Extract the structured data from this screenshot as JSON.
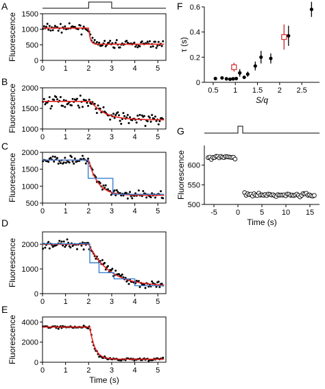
{
  "colors": {
    "fit": "#e8231f",
    "step_fit": "#3a7fd0",
    "marker": "#000000",
    "highlight": "#d43a3a"
  },
  "chart_data": [
    {
      "panel": "A",
      "type": "scatter",
      "xlabel": "",
      "ylabel": "Fluorescence",
      "xlim": [
        0,
        5.35
      ],
      "ylim": [
        0,
        1500
      ],
      "xticks": [
        0,
        1,
        2,
        3,
        4,
        5
      ],
      "yticks": [
        0,
        500,
        1000,
        1500
      ],
      "stimulus": {
        "on": 2.0,
        "off": 3.0
      },
      "series": [
        {
          "kind": "points",
          "pre": 1040,
          "post": 520,
          "t_step": 2.0,
          "tau": 0.08,
          "noise": 90
        },
        {
          "kind": "fit",
          "pre": 1040,
          "post": 520,
          "t_step": 2.0,
          "tau": 0.07
        }
      ]
    },
    {
      "panel": "B",
      "type": "scatter",
      "xlabel": "",
      "ylabel": "Fluorescence",
      "xlim": [
        0,
        5.35
      ],
      "ylim": [
        1000,
        2000
      ],
      "xticks": [
        0,
        1,
        2,
        3,
        4,
        5
      ],
      "yticks": [
        1000,
        1500,
        2000
      ],
      "series": [
        {
          "kind": "points",
          "pre": 1670,
          "post": 1220,
          "t_step": 2.1,
          "tau": 0.6,
          "noise": 110
        },
        {
          "kind": "fit",
          "pre": 1670,
          "post": 1220,
          "t_step": 2.1,
          "tau": 0.6
        }
      ]
    },
    {
      "panel": "C",
      "type": "scatter",
      "xlabel": "",
      "ylabel": "Fluorescence",
      "xlim": [
        0,
        5.35
      ],
      "ylim": [
        500,
        2000
      ],
      "xticks": [
        0,
        1,
        2,
        3,
        4,
        5
      ],
      "yticks": [
        500,
        1000,
        1500,
        2000
      ],
      "series": [
        {
          "kind": "points",
          "pre": 1770,
          "post": 730,
          "t_step": 2.0,
          "tau": 0.4,
          "noise": 90
        },
        {
          "kind": "fit",
          "pre": 1770,
          "post": 730,
          "t_step": 2.0,
          "tau": 0.4
        },
        {
          "kind": "steps",
          "levels": [
            [
              0,
              1770
            ],
            [
              1.98,
              1230
            ],
            [
              3.05,
              760
            ]
          ]
        }
      ]
    },
    {
      "panel": "D",
      "type": "scatter",
      "xlabel": "",
      "ylabel": "Fluorescence",
      "xlim": [
        0,
        5.35
      ],
      "ylim": [
        0,
        2500
      ],
      "xticks": [
        0,
        1,
        2,
        3,
        4,
        5
      ],
      "yticks": [
        0,
        1000,
        2000
      ],
      "series": [
        {
          "kind": "points",
          "pre": 2000,
          "post": 300,
          "t_step": 2.0,
          "tau": 0.9,
          "noise": 130
        },
        {
          "kind": "fit",
          "pre": 2000,
          "post": 300,
          "t_step": 2.0,
          "tau": 0.9
        },
        {
          "kind": "steps",
          "levels": [
            [
              0,
              2020
            ],
            [
              2.05,
              1250
            ],
            [
              2.45,
              850
            ],
            [
              3.1,
              600
            ],
            [
              4.0,
              320
            ]
          ]
        }
      ]
    },
    {
      "panel": "E",
      "type": "scatter",
      "xlabel": "Time (s)",
      "ylabel": "Fluorescence",
      "xlim": [
        0,
        5.35
      ],
      "ylim": [
        0,
        4500
      ],
      "xticks": [
        0,
        1,
        2,
        3,
        4,
        5
      ],
      "yticks": [
        0,
        2000,
        4000
      ],
      "series": [
        {
          "kind": "points",
          "pre": 3500,
          "post": 300,
          "t_step": 2.05,
          "tau": 0.2,
          "noise": 110
        },
        {
          "kind": "fit",
          "pre": 3500,
          "post": 300,
          "t_step": 2.05,
          "tau": 0.22
        }
      ]
    },
    {
      "panel": "F",
      "type": "scatter",
      "xlabel": "S/q",
      "ylabel": "τ (s)",
      "xlim": [
        0.3,
        2.9
      ],
      "ylim": [
        0,
        0.6
      ],
      "xticks": [
        0.5,
        1.0,
        1.5,
        2.0,
        2.5
      ],
      "yticks": [
        0.0,
        0.2,
        0.4,
        0.6
      ],
      "series": [
        {
          "name": "",
          "style": "filled",
          "x": [
            0.55,
            0.7,
            0.8,
            0.88,
            0.95,
            1.02,
            1.1,
            1.2,
            1.28,
            1.45,
            1.58,
            1.8,
            2.2,
            2.72
          ],
          "y": [
            0.03,
            0.035,
            0.028,
            0.025,
            0.028,
            0.03,
            0.075,
            0.04,
            0.065,
            0.13,
            0.2,
            0.19,
            0.37,
            0.58
          ],
          "err": [
            0.005,
            0.006,
            0.005,
            0.005,
            0.006,
            0.008,
            0.03,
            0.01,
            0.02,
            0.035,
            0.05,
            0.04,
            0.08,
            0.06
          ]
        },
        {
          "name": "",
          "style": "open-red",
          "x": [
            0.97,
            2.1
          ],
          "y": [
            0.12,
            0.36
          ],
          "err": [
            0.035,
            0.1
          ]
        }
      ]
    },
    {
      "panel": "G",
      "type": "scatter",
      "xlabel": "Time (s)",
      "ylabel": "Fluorescence",
      "xlim": [
        -7,
        17
      ],
      "ylim": [
        500,
        650
      ],
      "xticks": [
        -5,
        0,
        5,
        10,
        15
      ],
      "yticks": [
        500,
        550,
        600
      ],
      "stimulus": {
        "on": 0,
        "off": 1
      },
      "series": [
        {
          "kind": "open-circles",
          "pre": 620,
          "post": 524,
          "t_step": 0.5,
          "noise": 3,
          "spacing": 0.33
        }
      ]
    }
  ],
  "panel_letters": [
    "A",
    "B",
    "C",
    "D",
    "E",
    "F",
    "G"
  ]
}
